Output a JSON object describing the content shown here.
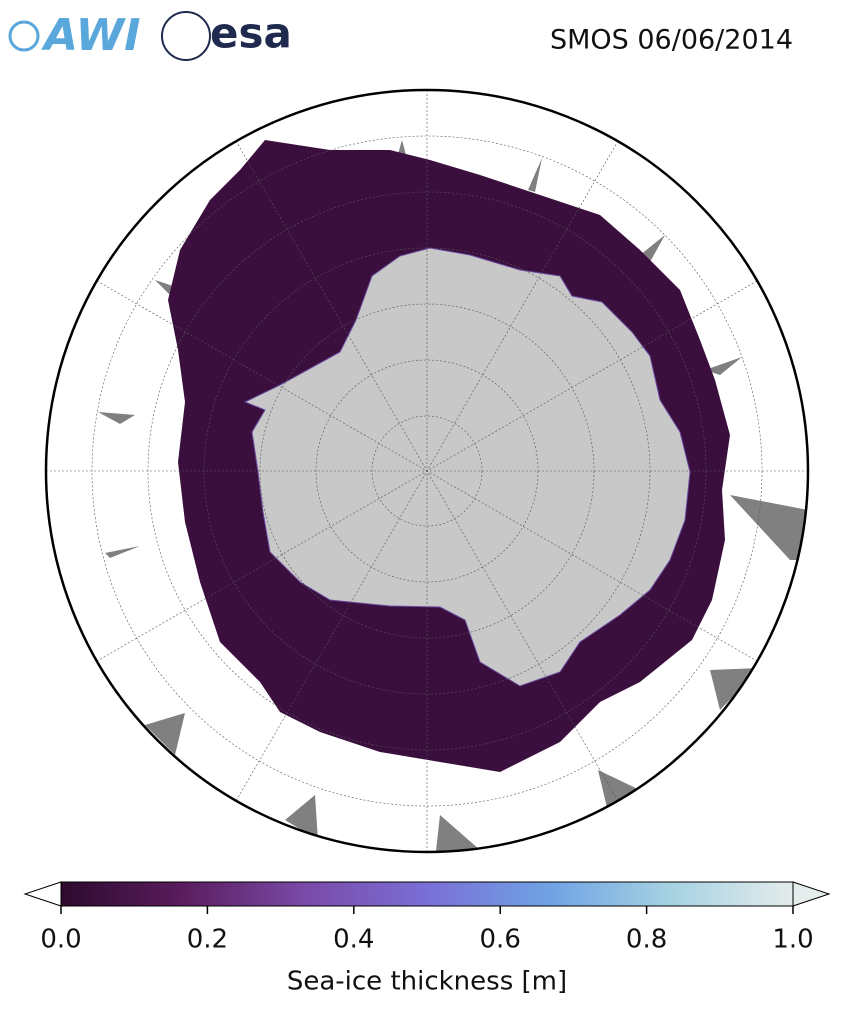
{
  "header": {
    "logos": [
      "AWI",
      "esa"
    ],
    "title": "SMOS 06/06/2014"
  },
  "colorbar": {
    "label": "Sea-ice thickness [m]",
    "range": [
      0,
      1
    ],
    "ticks": [
      {
        "value": 0,
        "label": "0.0"
      },
      {
        "value": 0.2,
        "label": "0.2"
      },
      {
        "value": 0.4,
        "label": "0.4"
      },
      {
        "value": 0.6,
        "label": "0.6"
      },
      {
        "value": 0.8,
        "label": "0.8"
      },
      {
        "value": 1,
        "label": "1.0"
      }
    ],
    "colors": [
      "#2d0a2e",
      "#5a1d5e",
      "#7a4aa8",
      "#7a6fd6",
      "#6fa2e4",
      "#a6d2e2",
      "#e4ecec"
    ]
  }
}
